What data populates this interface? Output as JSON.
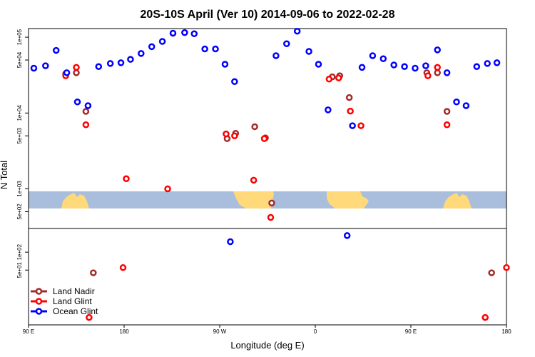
{
  "chart_data": {
    "type": "scatter",
    "title": "20S-10S April (Ver 10)   2014-09-06 to 2022-02-28",
    "xlabel": "Longitude (deg E)",
    "ylabel": "N Total",
    "x_ticks": [
      {
        "lon": 90,
        "label": "90 E"
      },
      {
        "lon": 180,
        "label": "180"
      },
      {
        "lon": 270,
        "label": "90 W"
      },
      {
        "lon": 360,
        "label": "0"
      },
      {
        "lon": 450,
        "label": "90 E"
      },
      {
        "lon": 540,
        "label": "180"
      }
    ],
    "xlim": [
      90,
      540
    ],
    "upper_panel": {
      "scale": "log",
      "ylim": [
        300,
        130000
      ],
      "y_ticks": [
        {
          "value": 500,
          "label": "5e+02"
        },
        {
          "value": 1000,
          "label": "1e+03"
        },
        {
          "value": 5000,
          "label": "5e+03"
        },
        {
          "value": 10000,
          "label": "1e+04"
        },
        {
          "value": 50000,
          "label": "5e+04"
        },
        {
          "value": 100000,
          "label": "1e+05"
        }
      ]
    },
    "lower_panel": {
      "scale": "log",
      "ylim": [
        6,
        250
      ],
      "y_ticks": [
        {
          "value": 50,
          "label": "5e+01"
        },
        {
          "value": 100,
          "label": "1e+02"
        }
      ]
    },
    "series": [
      {
        "name": "Land Nadir",
        "color": "#a52a2a",
        "points": [
          [
            125,
            33000
          ],
          [
            135,
            34000
          ],
          [
            144,
            10500
          ],
          [
            277,
            4600
          ],
          [
            285,
            5400
          ],
          [
            303,
            6600
          ],
          [
            313,
            4700
          ],
          [
            319,
            650
          ],
          [
            376,
            30000
          ],
          [
            383,
            31000
          ],
          [
            392,
            16000
          ],
          [
            465,
            34000
          ],
          [
            475,
            34000
          ],
          [
            484,
            10500
          ]
        ],
        "lower_points": [
          [
            151,
            45
          ],
          [
            526,
            45
          ]
        ]
      },
      {
        "name": "Land Glint",
        "color": "#ff0000",
        "points": [
          [
            125,
            31000
          ],
          [
            135,
            40000
          ],
          [
            144,
            7000
          ],
          [
            182,
            1360
          ],
          [
            221,
            1000
          ],
          [
            276,
            5300
          ],
          [
            284,
            5000
          ],
          [
            302,
            1300
          ],
          [
            312,
            4600
          ],
          [
            318,
            420
          ],
          [
            373,
            28000
          ],
          [
            382,
            29000
          ],
          [
            393,
            10600
          ],
          [
            403,
            6800
          ],
          [
            466,
            31000
          ],
          [
            475,
            40000
          ],
          [
            484,
            7000
          ]
        ],
        "lower_points": [
          [
            147,
            8
          ],
          [
            179,
            55
          ],
          [
            520,
            8
          ],
          [
            540,
            55
          ]
        ]
      },
      {
        "name": "Ocean Glint",
        "color": "#0000ff",
        "points": [
          [
            95,
            39000
          ],
          [
            106,
            42000
          ],
          [
            116,
            67000
          ],
          [
            126,
            34000
          ],
          [
            136,
            14000
          ],
          [
            146,
            12500
          ],
          [
            156,
            41000
          ],
          [
            167,
            45000
          ],
          [
            177,
            46000
          ],
          [
            186,
            51000
          ],
          [
            196,
            61000
          ],
          [
            206,
            75000
          ],
          [
            216,
            88000
          ],
          [
            226,
            113000
          ],
          [
            237,
            115000
          ],
          [
            246,
            111000
          ],
          [
            256,
            70000
          ],
          [
            266,
            70000
          ],
          [
            275,
            44000
          ],
          [
            284,
            26000
          ],
          [
            323,
            57000
          ],
          [
            333,
            82000
          ],
          [
            343,
            120000
          ],
          [
            354,
            65000
          ],
          [
            363,
            44000
          ],
          [
            372,
            11000
          ],
          [
            395,
            6800
          ],
          [
            404,
            40000
          ],
          [
            414,
            57000
          ],
          [
            424,
            52000
          ],
          [
            434,
            43000
          ],
          [
            444,
            41000
          ],
          [
            454,
            39000
          ],
          [
            464,
            42000
          ],
          [
            475,
            68000
          ],
          [
            484,
            34000
          ],
          [
            493,
            14000
          ],
          [
            502,
            12500
          ],
          [
            512,
            41000
          ],
          [
            522,
            45000
          ],
          [
            531,
            46000
          ]
        ],
        "lower_points": [
          [
            280,
            150
          ],
          [
            390,
            190
          ]
        ]
      }
    ],
    "legend": {
      "position": "bottom-left",
      "entries": [
        "Land Nadir",
        "Land Glint",
        "Ocean Glint"
      ]
    },
    "colors": {
      "ocean": "#a8bedc",
      "land": "#ffd97a",
      "frame": "#000000"
    },
    "grid": false
  }
}
